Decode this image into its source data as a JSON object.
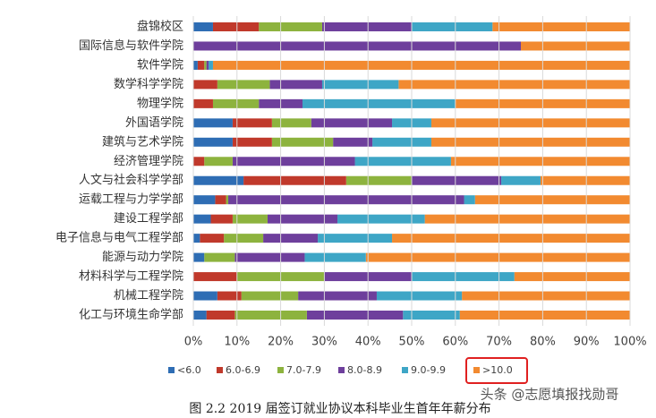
{
  "chart_data": {
    "type": "stacked-bar-horizontal",
    "categories": [
      "盘锦校区",
      "国际信息与软件学院",
      "软件学院",
      "数学科学学院",
      "物理学院",
      "外国语学院",
      "建筑与艺术学院",
      "经济管理学院",
      "人文与社会科学学部",
      "运载工程与力学学部",
      "建设工程学部",
      "电子信息与电气工程学部",
      "能源与动力学院",
      "材料科学与工程学院",
      "机械工程学院",
      "化工与环境生命学部"
    ],
    "series": [
      {
        "name": "<6.0",
        "color": "#2e6db4",
        "values": [
          4.5,
          0,
          1,
          0,
          0,
          9,
          9,
          0,
          11.5,
          5,
          4,
          1.5,
          2.5,
          0,
          5.5,
          3
        ]
      },
      {
        "name": "6.0-6.9",
        "color": "#c0392b",
        "values": [
          10.5,
          0,
          1.5,
          5.5,
          4.5,
          9,
          9,
          2.5,
          23.5,
          2.5,
          5,
          5.5,
          0,
          10,
          5.5,
          6.5
        ]
      },
      {
        "name": "7.0-7.9",
        "color": "#8db33e",
        "values": [
          14.5,
          0,
          0.5,
          12,
          10.5,
          9,
          14,
          6.5,
          15,
          0.5,
          8,
          9,
          7,
          20,
          13,
          16.5
        ]
      },
      {
        "name": "8.0-8.9",
        "color": "#6e3f9c",
        "values": [
          20.5,
          75,
          0.5,
          12,
          10,
          18.5,
          9,
          28,
          20.5,
          54,
          16,
          12.5,
          16,
          20,
          18,
          22
        ]
      },
      {
        "name": "9.0-9.9",
        "color": "#3ea6c6",
        "values": [
          18.5,
          0,
          1,
          17.5,
          35,
          9,
          13.5,
          22,
          9,
          2.5,
          20,
          17,
          14,
          23.5,
          19.5,
          13
        ]
      },
      {
        "name": ">10.0",
        "color": "#f28a30",
        "values": [
          31.5,
          25,
          95.5,
          53,
          40,
          45.5,
          45.5,
          41,
          20.5,
          35.5,
          47,
          54.5,
          60.5,
          26.5,
          38.5,
          39
        ]
      }
    ],
    "xlim": [
      0,
      100
    ],
    "xticks": [
      {
        "value": 0,
        "label": "0%"
      },
      {
        "value": 10,
        "label": "10%"
      },
      {
        "value": 20,
        "label": "20%"
      },
      {
        "value": 30,
        "label": "30%"
      },
      {
        "value": 40,
        "label": "40%"
      },
      {
        "value": 50,
        "label": "50%"
      },
      {
        "value": 60,
        "label": "60%"
      },
      {
        "value": 70,
        "label": "70%"
      },
      {
        "value": 80,
        "label": "80%"
      },
      {
        "value": 90,
        "label": "90%"
      },
      {
        "value": 100,
        "label": "100%"
      }
    ],
    "grid": true,
    "caption": "图 2.2    2019 届签订就业协议本科毕业生首年年薪分布",
    "watermark": "头条 @志愿填报找勋哥"
  }
}
